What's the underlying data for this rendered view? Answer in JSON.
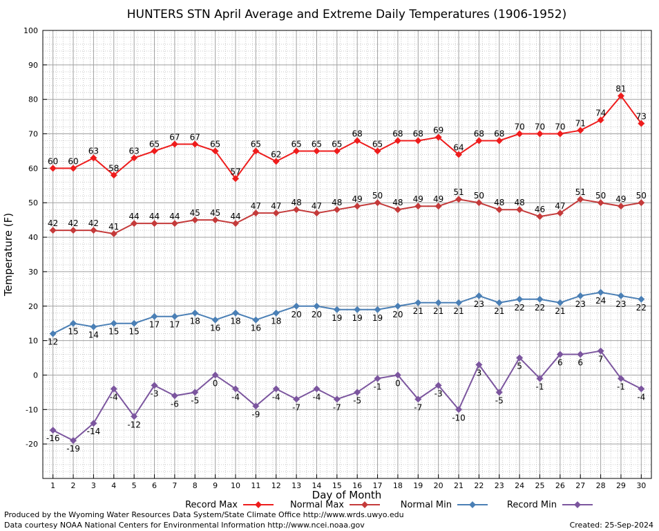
{
  "chart_data": {
    "type": "line",
    "title": "HUNTERS STN April Average and Extreme Daily Temperatures (1906-1952)",
    "xlabel": "Day of Month",
    "ylabel": "Temperature (F)",
    "xlim": [
      0.5,
      30.5
    ],
    "ylim": [
      -30,
      100
    ],
    "yticks": [
      -20,
      -10,
      0,
      10,
      20,
      30,
      40,
      50,
      60,
      70,
      80,
      90,
      100
    ],
    "x": [
      1,
      2,
      3,
      4,
      5,
      6,
      7,
      8,
      9,
      10,
      11,
      12,
      13,
      14,
      15,
      16,
      17,
      18,
      19,
      20,
      21,
      22,
      23,
      24,
      25,
      26,
      27,
      28,
      29,
      30
    ],
    "grid": true,
    "legend_position": "bottom",
    "series": [
      {
        "name": "Record Max",
        "color": "#ee1c1c",
        "label_position": "above",
        "values": [
          60,
          60,
          63,
          58,
          63,
          65,
          67,
          67,
          65,
          57,
          65,
          62,
          65,
          65,
          65,
          68,
          65,
          68,
          68,
          69,
          64,
          68,
          68,
          70,
          70,
          70,
          71,
          74,
          81,
          73
        ]
      },
      {
        "name": "Normal Max",
        "color": "#c43a3a",
        "label_position": "above",
        "values": [
          42,
          42,
          42,
          41,
          44,
          44,
          44,
          45,
          45,
          44,
          47,
          47,
          48,
          47,
          48,
          49,
          50,
          48,
          49,
          49,
          51,
          50,
          48,
          48,
          46,
          47,
          51,
          50,
          49,
          50
        ]
      },
      {
        "name": "Normal Min",
        "color": "#4a7fb5",
        "label_position": "below",
        "values": [
          12,
          15,
          14,
          15,
          15,
          17,
          17,
          18,
          16,
          18,
          16,
          18,
          20,
          20,
          19,
          19,
          19,
          20,
          21,
          21,
          21,
          23,
          21,
          22,
          22,
          21,
          23,
          24,
          23,
          22
        ]
      },
      {
        "name": "Record Min",
        "color": "#7b559e",
        "label_position": "below",
        "values": [
          -16,
          -19,
          -14,
          -4,
          -12,
          -3,
          -6,
          -5,
          0,
          -4,
          -9,
          -4,
          -7,
          -4,
          -7,
          -5,
          -1,
          0,
          -7,
          -3,
          -10,
          3,
          -5,
          5,
          -1,
          6,
          6,
          7,
          -1,
          -4
        ]
      }
    ]
  },
  "footer": {
    "produced_by": "Produced by the Wyoming Water Resources Data System/State Climate Office http://www.wrds.uwyo.edu",
    "courtesy": "Data courtesy NOAA National Centers for Environmental Information http://www.ncei.noaa.gov",
    "created": "Created:  25-Sep-2024"
  }
}
